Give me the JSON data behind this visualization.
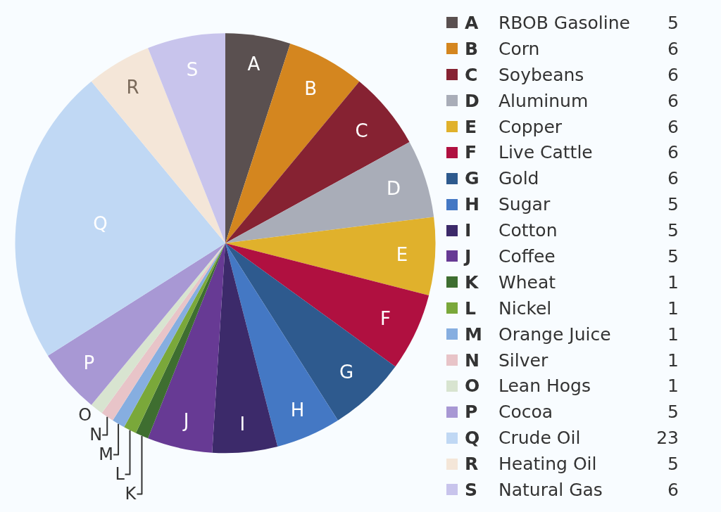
{
  "chart_data": {
    "type": "pie",
    "categories": [
      "RBOB Gasoline",
      "Corn",
      "Soybeans",
      "Aluminum",
      "Copper",
      "Live Cattle",
      "Gold",
      "Sugar",
      "Cotton",
      "Coffee",
      "Wheat",
      "Nickel",
      "Orange Juice",
      "Silver",
      "Lean Hogs",
      "Cocoa",
      "Crude Oil",
      "Heating Oil",
      "Natural Gas"
    ],
    "values": [
      5,
      6,
      6,
      6,
      6,
      6,
      6,
      5,
      5,
      5,
      1,
      1,
      1,
      1,
      1,
      5,
      23,
      5,
      6
    ],
    "colors": [
      "#5a5050",
      "#d4861f",
      "#862232",
      "#a9adb8",
      "#e0b12c",
      "#b01040",
      "#2e5a8e",
      "#4478c4",
      "#3c2a6a",
      "#673a94",
      "#3e6e30",
      "#7aa83a",
      "#86aee0",
      "#e8c4c8",
      "#d8e4d0",
      "#a898d4",
      "#c0d8f4",
      "#f4e6d8",
      "#c8c4ec"
    ],
    "annotations": [
      "A",
      "B",
      "C",
      "D",
      "E",
      "F",
      "G",
      "H",
      "I",
      "J",
      "K",
      "L",
      "M",
      "N",
      "O",
      "P",
      "Q",
      "R",
      "S"
    ],
    "data_labels": true,
    "legend": "right"
  }
}
